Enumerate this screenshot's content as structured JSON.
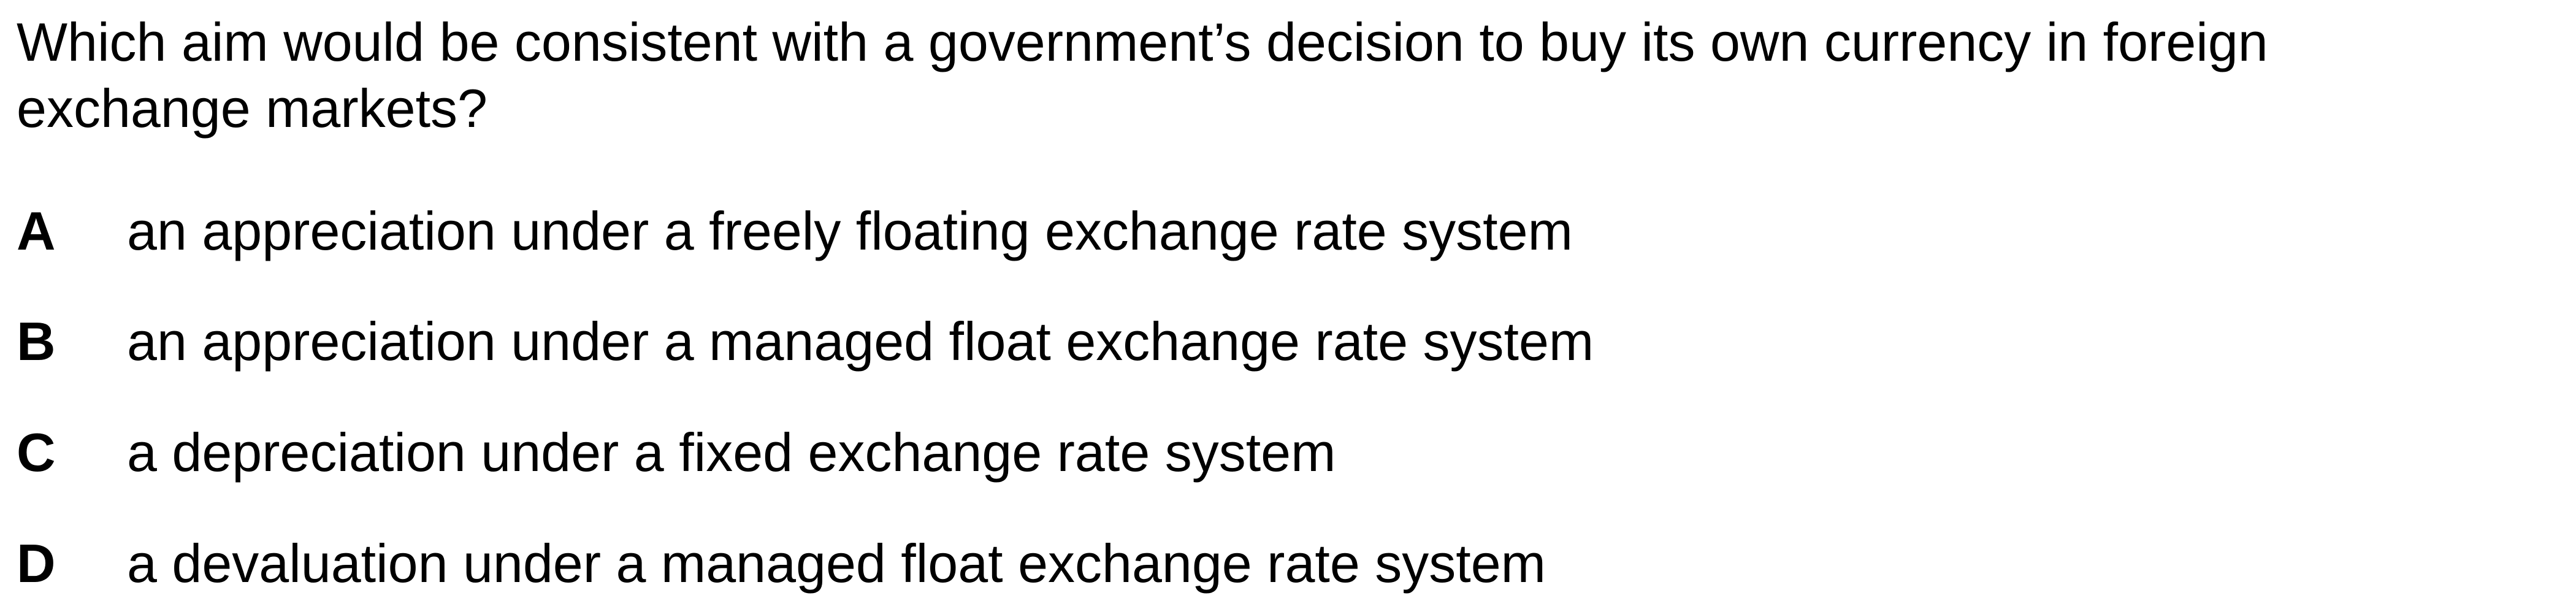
{
  "question": {
    "line1": "Which aim would be consistent with a government’s decision to buy its own currency in foreign",
    "line2": "exchange markets?"
  },
  "options": [
    {
      "letter": "A",
      "text": "an appreciation under a freely floating exchange rate system"
    },
    {
      "letter": "B",
      "text": "an appreciation under a managed float exchange rate system"
    },
    {
      "letter": "C",
      "text": "a depreciation under a fixed exchange rate system"
    },
    {
      "letter": "D",
      "text": "a devaluation under a managed float exchange rate system"
    }
  ]
}
